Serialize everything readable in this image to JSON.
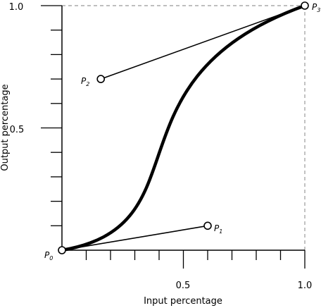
{
  "axes": {
    "x_title": "Input percentage",
    "y_title": "Output percentage",
    "x_tick_labels": [
      "0.5",
      "1.0"
    ],
    "y_tick_labels": [
      "0.5",
      "1.0"
    ]
  },
  "points": [
    {
      "letter": "P",
      "index": "0"
    },
    {
      "letter": "P",
      "index": "1"
    },
    {
      "letter": "P",
      "index": "2"
    },
    {
      "letter": "P",
      "index": "3"
    }
  ],
  "chart_data": {
    "type": "line",
    "x": [
      0,
      0.6,
      0.16,
      1.0
    ],
    "y": [
      0,
      0.1,
      0.7,
      1.0
    ],
    "xlim": [
      0,
      1
    ],
    "ylim": [
      0,
      1
    ],
    "xlabel": "Input percentage",
    "ylabel": "Output percentage",
    "x_ticks": [
      "0.5",
      "1.0"
    ],
    "y_ticks": [
      "0.5",
      "1.0"
    ],
    "control_points": [
      {
        "name": "P0",
        "x": 0,
        "y": 0
      },
      {
        "name": "P1",
        "x": 0.6,
        "y": 0.1
      },
      {
        "name": "P2",
        "x": 0.16,
        "y": 0.7
      },
      {
        "name": "P3",
        "x": 1.0,
        "y": 1.0
      }
    ],
    "curve": "cubic-bezier",
    "grid": false,
    "colors": {
      "curve": "#000000",
      "guide": "#999999"
    }
  }
}
